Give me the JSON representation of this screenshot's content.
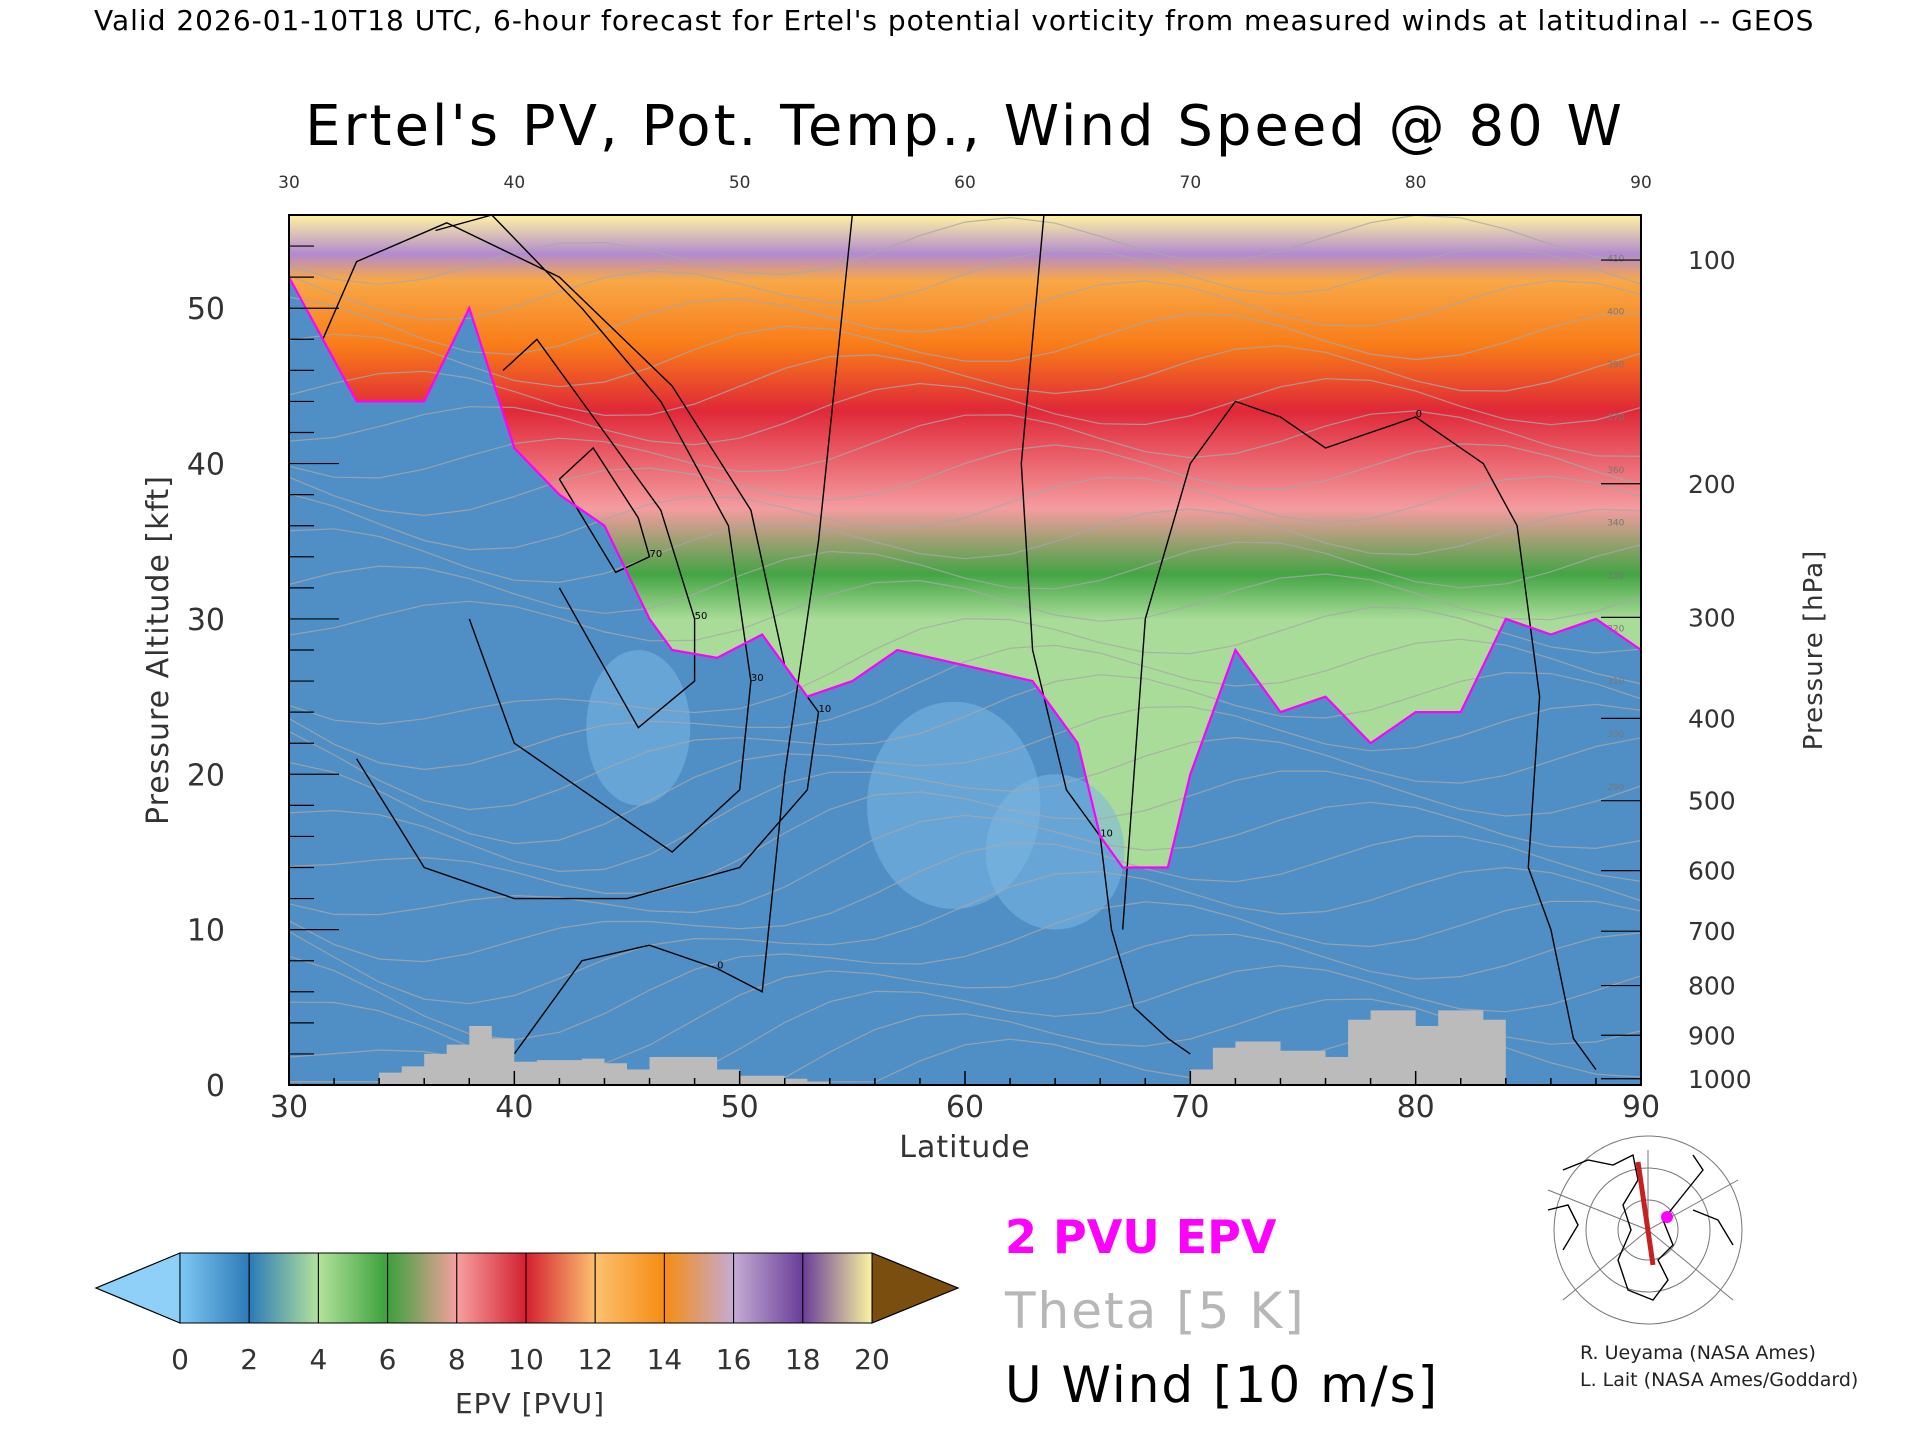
{
  "header": {
    "valid_line": "Valid 2026-01-10T18 UTC, 6-hour forecast for Ertel's potential vorticity from measured winds at latitudinal -- GEOS",
    "title": "Ertel's PV, Pot. Temp., Wind Speed @ 80 W"
  },
  "chart_data": {
    "type": "heatmap",
    "title": "Ertel's PV, Pot. Temp., Wind Speed @ 80 W",
    "xlabel": "Latitude",
    "ylabel": "Pressure Altitude [kft]",
    "y2label": "Pressure [hPa]",
    "xlim": [
      30,
      90
    ],
    "ylim": [
      0,
      56
    ],
    "x_ticks": [
      30,
      40,
      50,
      60,
      70,
      80,
      90
    ],
    "y_ticks": [
      0,
      10,
      20,
      30,
      40,
      50
    ],
    "top_ticks": [
      30,
      40,
      50,
      60,
      70,
      80,
      90
    ],
    "pressure_ticks": [
      {
        "label": "100",
        "kft": 53.1
      },
      {
        "label": "200",
        "kft": 38.7
      },
      {
        "label": "300",
        "kft": 30.1
      },
      {
        "label": "400",
        "kft": 23.6
      },
      {
        "label": "500",
        "kft": 18.3
      },
      {
        "label": "600",
        "kft": 13.8
      },
      {
        "label": "700",
        "kft": 9.9
      },
      {
        "label": "800",
        "kft": 6.4
      },
      {
        "label": "900",
        "kft": 3.2
      },
      {
        "label": "1000",
        "kft": 0.4
      }
    ],
    "colorbar": {
      "label": "EPV [PVU]",
      "ticks": [
        "0",
        "2",
        "4",
        "6",
        "8",
        "10",
        "12",
        "14",
        "16",
        "18",
        "20"
      ],
      "colors": [
        "#7fc8f4",
        "#2c7ab8",
        "#b4e29c",
        "#3aa03a",
        "#f5a0a0",
        "#d42030",
        "#fcc070",
        "#f68c12",
        "#c4abd4",
        "#6a3e98",
        "#fbf4a0"
      ],
      "under_color": "#8ed0f8",
      "over_color": "#7a4e0e"
    },
    "tropopause_2pvu": {
      "lat": [
        30,
        33,
        36,
        38,
        40,
        42,
        44,
        46,
        47,
        49,
        51,
        53,
        55,
        57,
        60,
        63,
        65,
        66,
        67,
        68,
        69,
        70,
        71,
        72,
        74,
        76,
        78,
        80,
        82,
        84,
        86,
        88,
        90
      ],
      "kft": [
        52,
        44,
        44,
        50,
        41,
        38,
        36,
        30,
        28,
        27.5,
        29,
        25,
        26,
        28,
        27,
        26,
        22,
        16,
        14,
        14,
        14,
        20,
        24,
        28,
        24,
        25,
        22,
        24,
        24,
        30,
        29,
        30,
        28
      ]
    },
    "u_wind_contours": [
      {
        "label": "70",
        "lat": [
          42,
          43.5,
          45.5,
          46,
          44.5,
          42
        ],
        "kft": [
          39,
          41,
          36.5,
          34,
          33,
          39
        ]
      },
      {
        "label": "50",
        "lat": [
          39.5,
          41,
          44,
          46.5,
          48,
          48,
          45.5,
          42
        ],
        "kft": [
          46,
          48,
          42,
          37,
          30,
          26,
          23,
          32
        ]
      },
      {
        "label": "30",
        "lat": [
          36.5,
          39,
          43,
          46.5,
          49.5,
          50.5,
          50,
          47,
          43,
          40,
          38
        ],
        "kft": [
          55,
          56,
          50,
          44,
          36,
          26,
          19,
          15,
          19,
          22,
          30
        ]
      },
      {
        "label": "10",
        "lat": [
          31.5,
          33,
          37,
          42,
          47,
          50.5,
          52,
          53.5,
          53,
          50,
          45,
          40,
          36,
          33
        ],
        "kft": [
          48,
          53,
          55.5,
          52,
          45,
          37,
          27,
          24,
          19,
          14,
          12,
          12,
          14,
          21
        ]
      },
      {
        "label": "0",
        "lat": [
          55,
          53.5,
          52,
          51,
          49,
          46,
          43,
          40
        ],
        "kft": [
          56,
          35,
          20,
          6,
          7.5,
          9,
          8,
          2
        ]
      },
      {
        "label": "10",
        "lat": [
          63.5,
          62.5,
          63,
          64.5,
          66,
          66.5,
          67.5,
          69,
          70
        ],
        "kft": [
          56,
          40,
          28,
          19,
          16,
          10,
          5,
          3,
          2
        ]
      },
      {
        "label": "0",
        "lat": [
          67,
          68,
          70,
          72,
          74,
          76,
          78,
          80,
          83,
          84.5,
          85.5,
          85,
          86,
          87,
          88
        ],
        "kft": [
          10,
          30,
          40,
          44,
          43,
          41,
          42,
          43,
          40,
          36,
          25,
          14,
          10,
          3,
          1
        ]
      }
    ],
    "theta_labels": [
      "410",
      "400",
      "390",
      "370",
      "360",
      "340",
      "330",
      "320",
      "310",
      "300",
      "290"
    ],
    "orography": {
      "lat": [
        34,
        35,
        36,
        37,
        38,
        39,
        40,
        41,
        42,
        43,
        44,
        45,
        46,
        47,
        48,
        49,
        50,
        51,
        52,
        53,
        70,
        71,
        72,
        73,
        74,
        75,
        76,
        77,
        78,
        79,
        80,
        81,
        82,
        83
      ],
      "kft": [
        0.8,
        1.2,
        2.0,
        2.6,
        3.8,
        3.0,
        1.5,
        1.6,
        1.6,
        1.7,
        1.4,
        1.0,
        1.8,
        1.8,
        1.8,
        1.0,
        0.6,
        0.6,
        0.4,
        0.2,
        1.0,
        2.4,
        2.8,
        2.8,
        2.2,
        2.2,
        1.8,
        4.2,
        4.8,
        4.8,
        3.8,
        4.8,
        4.8,
        4.2
      ]
    }
  },
  "legend": {
    "pv_label": "2 PVU EPV",
    "theta_label": "Theta [5 K]",
    "wind_label": "U Wind [10 m/s]",
    "pv_color": "#ff00ff",
    "theta_color": "#b7b7b7"
  },
  "credits": {
    "line1": "R. Ueyama (NASA Ames)",
    "line2": "L. Lait (NASA Ames/Goddard)"
  }
}
